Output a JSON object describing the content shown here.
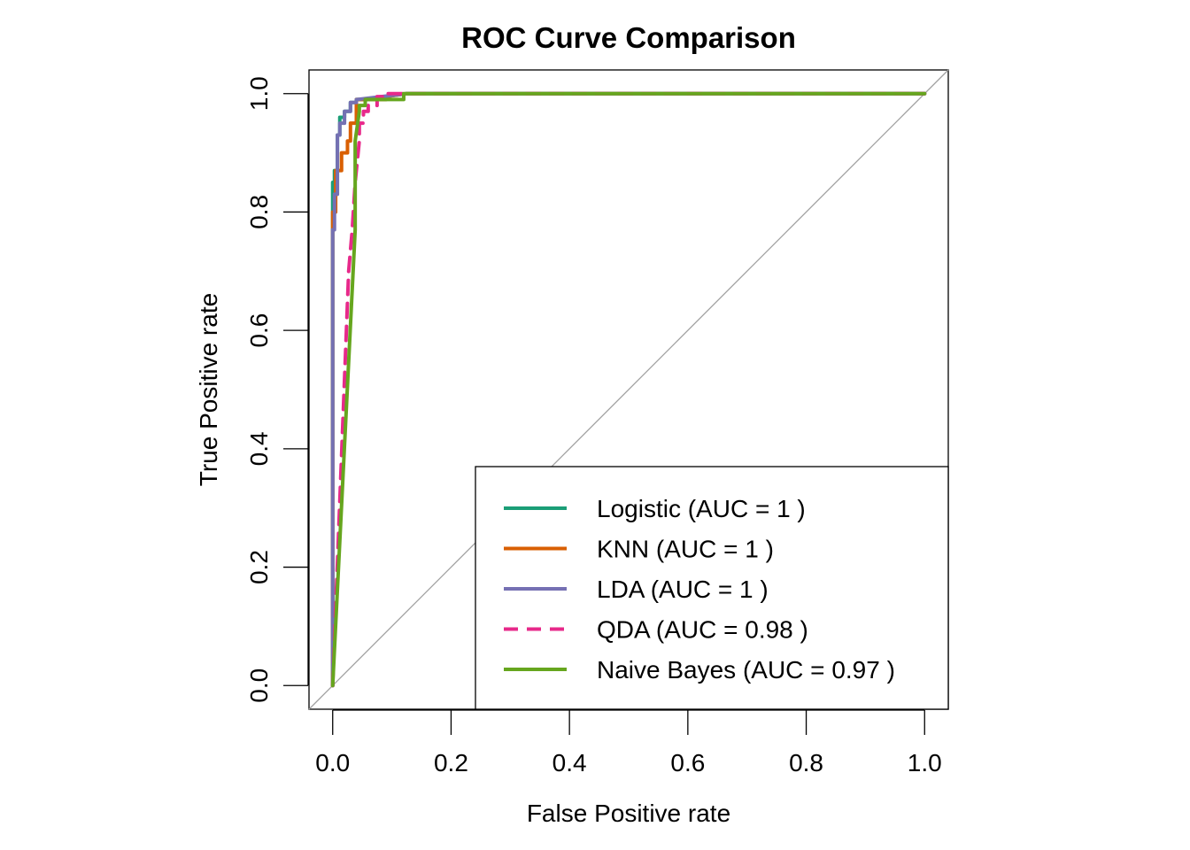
{
  "chart_data": {
    "type": "line",
    "title": "ROC Curve Comparison",
    "xlabel": "False Positive rate",
    "ylabel": "True Positive rate",
    "xlim": [
      -0.04,
      1.04
    ],
    "ylim": [
      -0.04,
      1.04
    ],
    "x_ticks": [
      0.0,
      0.2,
      0.4,
      0.6,
      0.8,
      1.0
    ],
    "y_ticks": [
      0.0,
      0.2,
      0.4,
      0.6,
      0.8,
      1.0
    ],
    "x_tick_labels": [
      "0.0",
      "0.2",
      "0.4",
      "0.6",
      "0.8",
      "1.0"
    ],
    "y_tick_labels": [
      "0.0",
      "0.2",
      "0.4",
      "0.6",
      "0.8",
      "1.0"
    ],
    "grid": false,
    "diagonal_reference": true,
    "diagonal_color": "#a0a0a0",
    "legend_position": "bottom-right",
    "series": [
      {
        "name": "Logistic (AUC = 1 )",
        "color": "#1b9e77",
        "dash": "solid",
        "x": [
          0.0,
          0.0,
          0.003,
          0.003,
          0.008,
          0.008,
          0.012,
          0.012,
          0.02,
          0.02,
          0.03,
          0.03,
          0.04,
          0.04,
          0.09,
          0.09,
          0.125,
          1.0
        ],
        "y": [
          0.0,
          0.85,
          0.85,
          0.87,
          0.87,
          0.93,
          0.93,
          0.96,
          0.96,
          0.97,
          0.97,
          0.985,
          0.985,
          0.99,
          0.99,
          0.995,
          1.0,
          1.0
        ]
      },
      {
        "name": "KNN (AUC = 1 )",
        "color": "#d95f02",
        "dash": "solid",
        "x": [
          0.0,
          0.0,
          0.005,
          0.005,
          0.015,
          0.015,
          0.025,
          0.025,
          0.03,
          0.03,
          0.04,
          0.04,
          0.09,
          0.09,
          0.125,
          1.0
        ],
        "y": [
          0.0,
          0.8,
          0.8,
          0.87,
          0.87,
          0.9,
          0.9,
          0.92,
          0.92,
          0.95,
          0.95,
          0.99,
          0.99,
          0.995,
          1.0,
          1.0
        ]
      },
      {
        "name": "LDA (AUC = 1 )",
        "color": "#7570b3",
        "dash": "solid",
        "x": [
          0.0,
          0.0,
          0.003,
          0.003,
          0.008,
          0.008,
          0.012,
          0.012,
          0.02,
          0.02,
          0.03,
          0.03,
          0.04,
          0.04,
          0.125,
          1.0
        ],
        "y": [
          0.0,
          0.77,
          0.77,
          0.83,
          0.83,
          0.93,
          0.93,
          0.95,
          0.95,
          0.97,
          0.97,
          0.985,
          0.985,
          0.99,
          1.0,
          1.0
        ]
      },
      {
        "name": "QDA (AUC = 0.98 )",
        "color": "#e7298a",
        "dash": "dashed",
        "x": [
          0.0,
          0.027,
          0.033,
          0.038,
          0.045,
          0.045,
          0.052,
          0.052,
          0.06,
          0.06,
          0.075,
          0.075,
          0.085,
          0.085,
          0.11,
          0.11,
          1.0
        ],
        "y": [
          0.0,
          0.7,
          0.77,
          0.85,
          0.92,
          0.95,
          0.95,
          0.97,
          0.97,
          0.98,
          0.98,
          0.995,
          0.995,
          1.0,
          1.0,
          1.0,
          1.0
        ]
      },
      {
        "name": "Naive Bayes (AUC = 0.97 )",
        "color": "#66a61e",
        "dash": "solid",
        "x": [
          0.0,
          0.038,
          0.038,
          0.045,
          0.045,
          0.055,
          0.055,
          0.12,
          0.12,
          1.0
        ],
        "y": [
          0.0,
          0.77,
          0.92,
          0.97,
          0.98,
          0.98,
          0.99,
          0.99,
          1.0,
          1.0
        ]
      }
    ]
  }
}
